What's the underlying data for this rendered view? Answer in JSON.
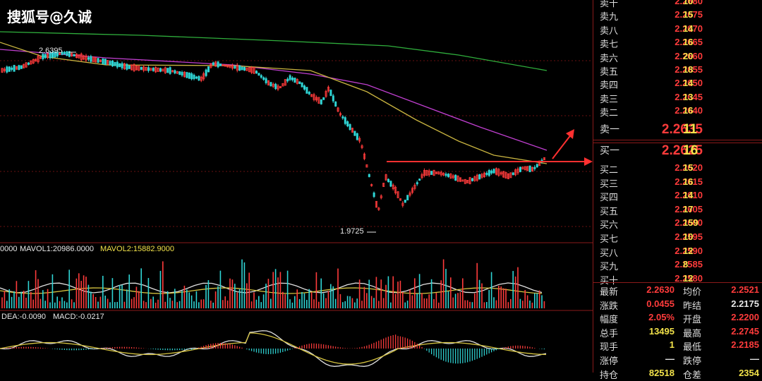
{
  "watermark": "搜狐号@久诚",
  "chart_data": {
    "type": "candlestick",
    "annotations": {
      "high_label": "2.6395",
      "low_label": "1.9725"
    },
    "volume_legend": {
      "prefix": "0000",
      "mavol1": "MAVOL1:20986.0000",
      "mavol2": "MAVOL2:15882.9000"
    },
    "macd_legend": {
      "dea": "DEA:-0.0090",
      "macd": "MACD:-0.0217"
    },
    "resistance_level": 2.2625
  },
  "order_book": {
    "sell": [
      {
        "label": "卖十",
        "price": "2.2680",
        "vol": "10"
      },
      {
        "label": "卖九",
        "price": "2.2675",
        "vol": "15"
      },
      {
        "label": "卖八",
        "price": "2.2670",
        "vol": "14"
      },
      {
        "label": "卖七",
        "price": "2.2665",
        "vol": "16"
      },
      {
        "label": "卖六",
        "price": "2.2660",
        "vol": "20"
      },
      {
        "label": "卖五",
        "price": "2.2655",
        "vol": "18"
      },
      {
        "label": "卖四",
        "price": "2.2650",
        "vol": "14"
      },
      {
        "label": "卖三",
        "price": "2.2645",
        "vol": "13"
      },
      {
        "label": "卖二",
        "price": "2.2640",
        "vol": "16"
      },
      {
        "label": "卖一",
        "price": "2.2635",
        "vol": "11"
      }
    ],
    "buy": [
      {
        "label": "买一",
        "price": "2.2625",
        "vol": "16"
      },
      {
        "label": "买二",
        "price": "2.2620",
        "vol": "15"
      },
      {
        "label": "买三",
        "price": "2.2615",
        "vol": "16"
      },
      {
        "label": "买四",
        "price": "2.2610",
        "vol": "14"
      },
      {
        "label": "买五",
        "price": "2.2605",
        "vol": "17"
      },
      {
        "label": "买六",
        "price": "2.2600",
        "vol": "159"
      },
      {
        "label": "买七",
        "price": "2.2595",
        "vol": "10"
      },
      {
        "label": "买八",
        "price": "2.2590",
        "vol": "12"
      },
      {
        "label": "买九",
        "price": "2.2585",
        "vol": "8"
      },
      {
        "label": "买十",
        "price": "2.2580",
        "vol": "12"
      }
    ]
  },
  "stats": [
    {
      "l1": "最新",
      "v1": "2.2630",
      "c1": "red",
      "l2": "均价",
      "v2": "2.2521",
      "c2": "red"
    },
    {
      "l1": "涨跌",
      "v1": "0.0455",
      "c1": "red",
      "l2": "昨结",
      "v2": "2.2175",
      "c2": "white"
    },
    {
      "l1": "幅度",
      "v1": "2.05%",
      "c1": "red",
      "l2": "开盘",
      "v2": "2.2200",
      "c2": "red"
    },
    {
      "l1": "总手",
      "v1": "13495",
      "c1": "yel",
      "l2": "最高",
      "v2": "2.2745",
      "c2": "red"
    },
    {
      "l1": "现手",
      "v1": "1",
      "c1": "yel",
      "l2": "最低",
      "v2": "2.2185",
      "c2": "red"
    },
    {
      "l1": "涨停",
      "v1": "—",
      "c1": "white",
      "l2": "跌停",
      "v2": "—",
      "c2": "white"
    },
    {
      "l1": "持仓",
      "v1": "82518",
      "c1": "yel",
      "l2": "仓差",
      "v2": "2354",
      "c2": "yel"
    }
  ]
}
